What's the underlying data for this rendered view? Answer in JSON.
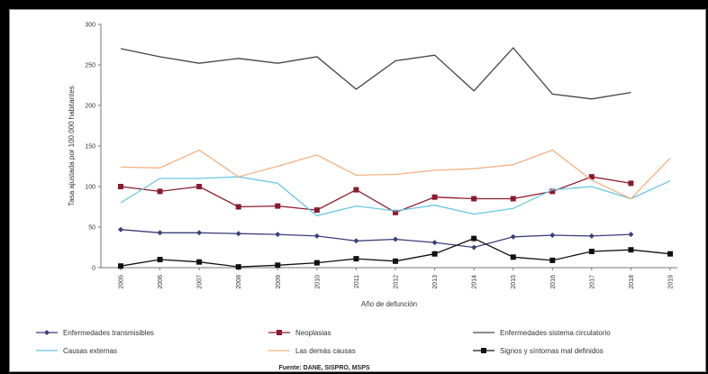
{
  "chart_data": {
    "type": "line",
    "title": "",
    "ylabel": "Tasa ajustada por 100.000 habitantes",
    "xlabel": "Año de defunción",
    "source": "Fuente: DANE, SISPRO, MSPS",
    "ylim": [
      0,
      300
    ],
    "y_ticks": [
      "0",
      "50",
      "100",
      "150",
      "200",
      "250",
      "300"
    ],
    "categories": [
      "2005",
      "2006",
      "2007",
      "2008",
      "2009",
      "2010",
      "2011",
      "2012",
      "2013",
      "2014",
      "2015",
      "2016",
      "2017",
      "2018",
      "2019"
    ],
    "grid": false,
    "legend_position": "bottom",
    "series": [
      {
        "name": "Enfermedades transmisibles",
        "color": "#3b3f7a",
        "marker": "diamond",
        "values": [
          47,
          43,
          43,
          42,
          41,
          39,
          33,
          35,
          31,
          25,
          38,
          40,
          39,
          41,
          null
        ]
      },
      {
        "name": "Neoplasias",
        "color": "#8b1a2e",
        "marker": "square",
        "values": [
          100,
          94,
          100,
          75,
          76,
          71,
          96,
          68,
          87,
          85,
          85,
          94,
          112,
          104,
          null
        ]
      },
      {
        "name": "Enfermedades sistema circulatorio",
        "color": "#444444",
        "marker": "none",
        "values": [
          270,
          260,
          252,
          258,
          252,
          260,
          220,
          255,
          262,
          218,
          271,
          214,
          208,
          216,
          null
        ]
      },
      {
        "name": "Causas externas",
        "color": "#66c8e0",
        "marker": "none",
        "values": [
          80,
          110,
          110,
          112,
          104,
          64,
          76,
          70,
          77,
          66,
          73,
          96,
          100,
          85,
          107
        ]
      },
      {
        "name": "Las demás causas",
        "color": "#f4b183",
        "marker": "none",
        "values": [
          124,
          123,
          145,
          112,
          125,
          139,
          114,
          115,
          120,
          122,
          127,
          145,
          108,
          85,
          135
        ]
      },
      {
        "name": "Signos y síntomas mal definidos",
        "color": "#111111",
        "marker": "square",
        "values": [
          2,
          10,
          7,
          1,
          3,
          6,
          11,
          8,
          17,
          36,
          13,
          9,
          20,
          22,
          17
        ]
      }
    ]
  }
}
